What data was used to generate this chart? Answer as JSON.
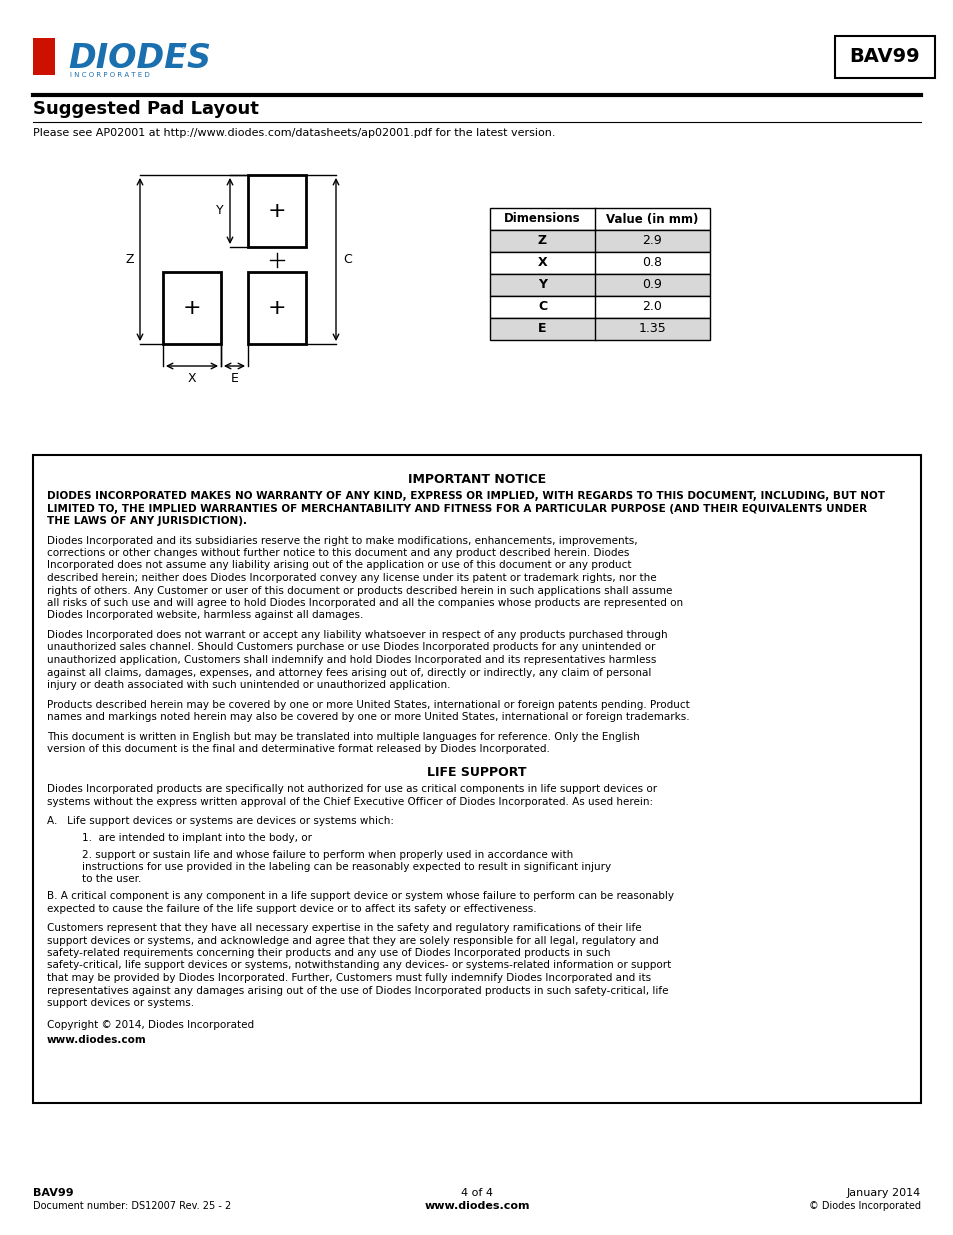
{
  "title": "BAV99",
  "section_title": "Suggested Pad Layout",
  "subtitle": "Please see AP02001 at http://www.diodes.com/datasheets/ap02001.pdf for the latest version.",
  "table_headers": [
    "Dimensions",
    "Value (in mm)"
  ],
  "table_rows": [
    [
      "Z",
      "2.9"
    ],
    [
      "X",
      "0.8"
    ],
    [
      "Y",
      "0.9"
    ],
    [
      "C",
      "2.0"
    ],
    [
      "E",
      "1.35"
    ]
  ],
  "important_notice_title": "IMPORTANT NOTICE",
  "important_notice_body": "DIODES INCORPORATED MAKES NO WARRANTY OF ANY KIND, EXPRESS OR IMPLIED, WITH REGARDS TO THIS DOCUMENT, INCLUDING, BUT NOT LIMITED TO, THE IMPLIED WARRANTIES OF MERCHANTABILITY AND FITNESS FOR A PARTICULAR PURPOSE (AND THEIR EQUIVALENTS UNDER THE LAWS OF ANY JURISDICTION).",
  "notice_para1": "Diodes Incorporated and its subsidiaries reserve the right to make modifications, enhancements, improvements, corrections or other changes without further notice to this document and any product described herein. Diodes Incorporated does not assume any liability arising out of the application or use of this document or any product described herein; neither does Diodes Incorporated convey any license under its patent or trademark rights, nor the rights of others.  Any Customer or user of this document or products described herein in such applications shall assume all risks of such use and will agree to hold Diodes Incorporated and all the companies whose products are represented on Diodes Incorporated website, harmless against all damages.",
  "notice_para2": "Diodes Incorporated does not warrant or accept any liability whatsoever in respect of any products purchased through unauthorized sales channel. Should Customers purchase or use Diodes Incorporated products for any unintended or unauthorized application, Customers shall indemnify and hold Diodes Incorporated and its representatives harmless against all claims, damages, expenses, and attorney fees arising out of, directly or indirectly, any claim of personal injury or death associated with such unintended or unauthorized application.",
  "notice_para3": "Products described herein may be covered by one or more United States, international or foreign patents pending.  Product names and markings noted herein may also be covered by one or more United States, international or foreign trademarks.",
  "notice_para4": "This document is written in English but may be translated into multiple languages for reference.  Only the English version of this document is the final and determinative format released by Diodes Incorporated.",
  "life_support_title": "LIFE SUPPORT",
  "life_support_intro": "Diodes Incorporated products are specifically not authorized for use as critical components in life support devices or systems without the express written approval of the Chief Executive Officer of Diodes Incorporated. As used herein:",
  "life_support_A": "A.   Life support devices or systems are devices or systems which:",
  "life_support_A1": "1.  are intended to implant into the body, or",
  "life_support_A2": "2.  support or sustain life and whose failure to perform when properly used in accordance with instructions for use provided in the labeling can be reasonably expected to result in significant injury to the user.",
  "life_support_B": "B.   A critical component is any component in a life support device or system whose failure to perform can be reasonably expected to cause the failure of the life support device or to affect its safety or effectiveness.",
  "customers_para": "Customers represent that they have all necessary expertise in the safety and regulatory ramifications of their life support devices or systems, and acknowledge and agree that they are solely responsible for all legal, regulatory and safety-related requirements concerning their products and any use of Diodes Incorporated products in such safety-critical, life support devices or systems, notwithstanding any devices- or systems-related information or support that may be provided by Diodes Incorporated.  Further, Customers must fully indemnify Diodes Incorporated and its representatives against any damages arising out of the use of Diodes Incorporated products in such safety-critical, life support devices or systems.",
  "copyright": "Copyright © 2014, Diodes Incorporated",
  "website": "www.diodes.com",
  "footer_left1": "BAV99",
  "footer_left2": "Document number: DS12007 Rev. 25 - 2",
  "footer_center1": "4 of 4",
  "footer_center2": "www.diodes.com",
  "footer_right1": "January 2014",
  "footer_right2": "© Diodes Incorporated",
  "bg_color": "#ffffff",
  "text_color": "#000000",
  "diodes_logo_color": "#1a6faf"
}
